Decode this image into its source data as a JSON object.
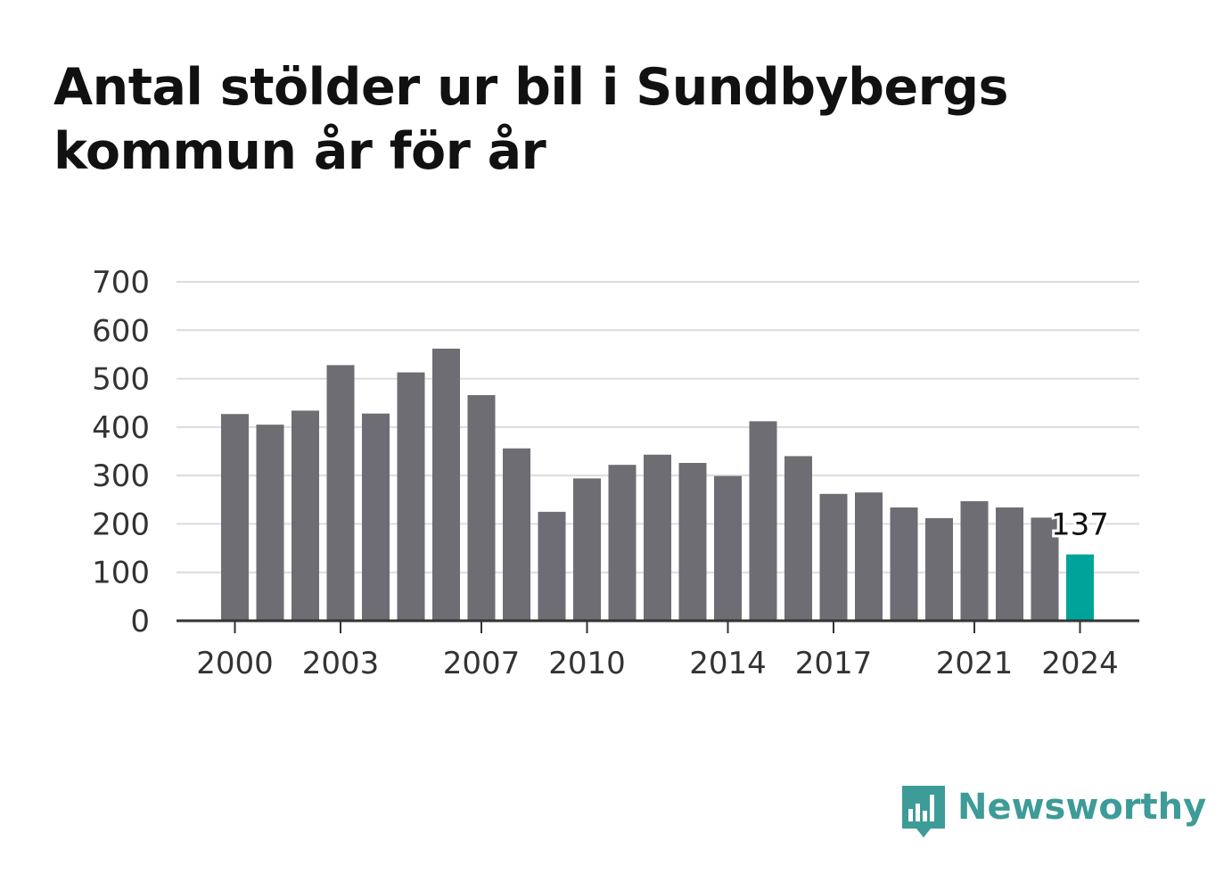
{
  "header": {
    "title": "Antal stölder ur bil i Sundbybergs kommun år för år"
  },
  "brand": {
    "name": "Newsworthy",
    "icon": "bar-chart-speech-bubble-icon",
    "color": "#3d9b98"
  },
  "chart_data": {
    "type": "bar",
    "title": "Antal stölder ur bil i Sundbybergs kommun år för år",
    "xlabel": "",
    "ylabel": "",
    "categories": [
      "2000",
      "2001",
      "2002",
      "2003",
      "2004",
      "2005",
      "2006",
      "2007",
      "2008",
      "2009",
      "2010",
      "2011",
      "2012",
      "2013",
      "2014",
      "2015",
      "2016",
      "2017",
      "2018",
      "2019",
      "2020",
      "2021",
      "2022",
      "2023",
      "2024"
    ],
    "values": [
      427,
      405,
      434,
      528,
      428,
      513,
      562,
      466,
      356,
      225,
      294,
      322,
      343,
      326,
      299,
      412,
      340,
      262,
      265,
      234,
      212,
      247,
      234,
      213,
      137
    ],
    "x_tick_labels": [
      "2000",
      "2003",
      "2007",
      "2010",
      "2014",
      "2017",
      "2021",
      "2024"
    ],
    "y_ticks": [
      0,
      100,
      200,
      300,
      400,
      500,
      600,
      700
    ],
    "ylim": [
      0,
      700
    ],
    "grid": true,
    "bar_color": "#6e6d73",
    "highlight_color": "#00a39a",
    "highlight_index": 24,
    "annotation": {
      "text": "137",
      "index": 24
    }
  }
}
